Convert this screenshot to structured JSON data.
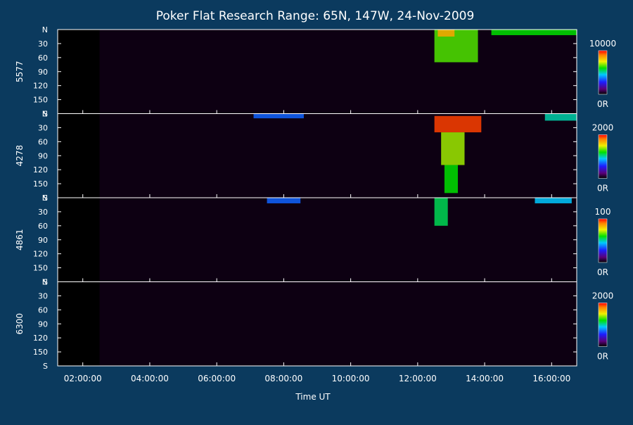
{
  "chart_data": {
    "type": "heatmap",
    "title": "Poker Flat Research Range: 65N, 147W, 24-Nov-2009",
    "xlabel": "Time UT",
    "x_ticks": [
      "02:00:00",
      "04:00:00",
      "06:00:00",
      "08:00:00",
      "10:00:00",
      "12:00:00",
      "14:00:00",
      "16:00:00"
    ],
    "x_tick_hours": [
      2,
      4,
      6,
      8,
      10,
      12,
      14,
      16
    ],
    "x_range_hours": [
      1.25,
      16.75
    ],
    "y_ticks": [
      "N",
      "30",
      "60",
      "90",
      "120",
      "150",
      "S"
    ],
    "y_tick_values": [
      0,
      30,
      60,
      90,
      120,
      150,
      180
    ],
    "y_range": [
      0,
      180
    ],
    "data_start_hour": 2.5,
    "panels": [
      {
        "name": "5577",
        "colorbar_max": "10000",
        "colorbar_min": "0R",
        "features": [
          {
            "t0": 12.5,
            "t1": 13.8,
            "s0": 0,
            "s1": 70,
            "intensity": 0.65
          },
          {
            "t0": 12.6,
            "t1": 13.1,
            "s0": 0,
            "s1": 15,
            "intensity": 0.85
          },
          {
            "t0": 14.2,
            "t1": 16.75,
            "s0": 0,
            "s1": 12,
            "intensity": 0.6
          }
        ]
      },
      {
        "name": "4278",
        "colorbar_max": "2000",
        "colorbar_min": "0R",
        "features": [
          {
            "t0": 12.5,
            "t1": 13.9,
            "s0": 5,
            "s1": 40,
            "intensity": 0.95
          },
          {
            "t0": 12.7,
            "t1": 13.4,
            "s0": 40,
            "s1": 110,
            "intensity": 0.7
          },
          {
            "t0": 12.8,
            "t1": 13.2,
            "s0": 110,
            "s1": 170,
            "intensity": 0.6
          },
          {
            "t0": 7.1,
            "t1": 8.6,
            "s0": 0,
            "s1": 10,
            "intensity": 0.35
          },
          {
            "t0": 15.8,
            "t1": 16.75,
            "s0": 0,
            "s1": 15,
            "intensity": 0.5
          }
        ]
      },
      {
        "name": "4861",
        "colorbar_max": "100",
        "colorbar_min": "0R",
        "features": [
          {
            "t0": 12.5,
            "t1": 12.9,
            "s0": 0,
            "s1": 60,
            "intensity": 0.55
          },
          {
            "t0": 7.5,
            "t1": 8.5,
            "s0": 0,
            "s1": 12,
            "intensity": 0.35
          },
          {
            "t0": 15.5,
            "t1": 16.6,
            "s0": 0,
            "s1": 12,
            "intensity": 0.45
          }
        ]
      },
      {
        "name": "6300",
        "colorbar_max": "2000",
        "colorbar_min": "0R",
        "features": []
      }
    ]
  }
}
